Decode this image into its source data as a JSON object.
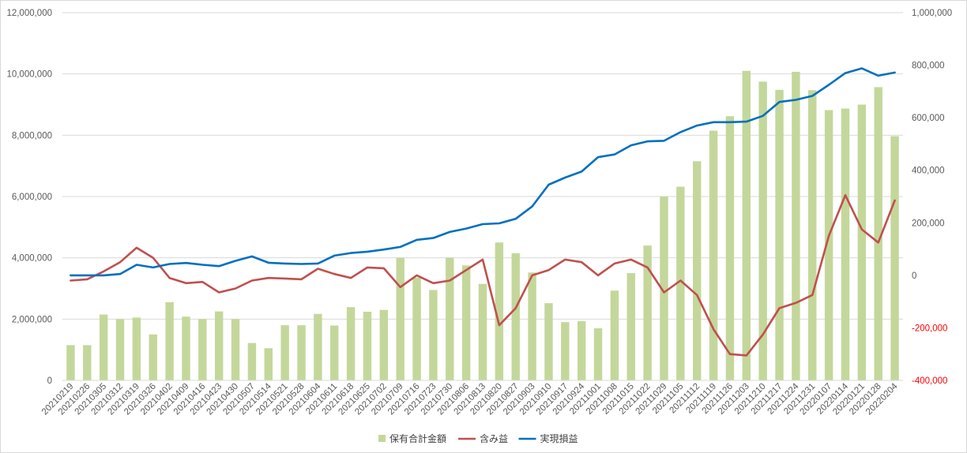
{
  "chart_data": {
    "type": "bar",
    "title": "",
    "categories": [
      "20210219",
      "20210226",
      "20210305",
      "20210312",
      "20210319",
      "20210326",
      "20210402",
      "20210409",
      "20210416",
      "20210423",
      "20210430",
      "20210507",
      "20210514",
      "20210521",
      "20210528",
      "20210604",
      "20210611",
      "20210618",
      "20210625",
      "20210702",
      "20210709",
      "20210716",
      "20210723",
      "20210730",
      "20210806",
      "20210813",
      "20210820",
      "20210827",
      "20210903",
      "20210910",
      "20210917",
      "20210924",
      "20211001",
      "20211008",
      "20211015",
      "20211022",
      "20211029",
      "20211105",
      "20211112",
      "20211119",
      "20211126",
      "20211203",
      "20211210",
      "20211217",
      "20211224",
      "20211231",
      "20220107",
      "20220114",
      "20220121",
      "20220128",
      "20220204"
    ],
    "y_left": {
      "min": 0,
      "max": 12000000,
      "step": 2000000,
      "ticks": [
        "0",
        "2,000,000",
        "4,000,000",
        "6,000,000",
        "8,000,000",
        "10,000,000",
        "12,000,000"
      ]
    },
    "y_right": {
      "min": -400000,
      "max": 1000000,
      "step": 200000,
      "ticks": [
        "-400,000",
        "-200,000",
        "0",
        "200,000",
        "400,000",
        "600,000",
        "800,000",
        "1,000,000"
      ],
      "negative_color": "#ff0000"
    },
    "grid": true,
    "legend_position": "bottom",
    "series": [
      {
        "name": "保有合計金額",
        "type": "bar",
        "axis": "left",
        "color": "#c4d79b",
        "values": [
          1150000,
          1150000,
          2150000,
          2000000,
          2050000,
          1500000,
          2550000,
          2080000,
          2000000,
          2250000,
          2000000,
          1220000,
          1050000,
          1800000,
          1800000,
          2170000,
          1790000,
          2390000,
          2240000,
          2300000,
          4000000,
          3350000,
          2950000,
          4000000,
          3750000,
          3150000,
          4500000,
          4150000,
          3520000,
          2520000,
          1900000,
          1930000,
          1700000,
          2930000,
          3500000,
          4400000,
          6000000,
          6320000,
          7150000,
          8150000,
          8620000,
          10100000,
          9750000,
          9480000,
          10070000,
          9470000,
          8820000,
          8870000,
          9000000,
          9570000,
          7970000
        ]
      },
      {
        "name": "含み益",
        "type": "line",
        "axis": "right",
        "color": "#c0504d",
        "values": [
          -20000,
          -15000,
          15000,
          50000,
          105000,
          67000,
          -10000,
          -30000,
          -25000,
          -65000,
          -50000,
          -20000,
          -10000,
          -12000,
          -15000,
          25000,
          5000,
          -10000,
          30000,
          27000,
          -45000,
          0,
          -30000,
          -20000,
          20000,
          60000,
          -190000,
          -125000,
          0,
          20000,
          60000,
          50000,
          0,
          45000,
          60000,
          30000,
          -65000,
          -20000,
          -75000,
          -205000,
          -300000,
          -305000,
          -225000,
          -125000,
          -105000,
          -75000,
          150000,
          305000,
          175000,
          125000,
          285000
        ]
      },
      {
        "name": "実現損益",
        "type": "line",
        "axis": "right",
        "color": "#0070c0",
        "values": [
          0,
          0,
          0,
          5000,
          40000,
          30000,
          43000,
          47000,
          40000,
          35000,
          55000,
          72000,
          48000,
          45000,
          43000,
          45000,
          75000,
          85000,
          90000,
          98000,
          108000,
          135000,
          142000,
          165000,
          178000,
          195000,
          198000,
          215000,
          262000,
          345000,
          372000,
          395000,
          450000,
          460000,
          495000,
          510000,
          512000,
          545000,
          570000,
          583000,
          583000,
          585000,
          607000,
          660000,
          668000,
          683000,
          725000,
          770000,
          788000,
          760000,
          772000
        ]
      }
    ]
  }
}
